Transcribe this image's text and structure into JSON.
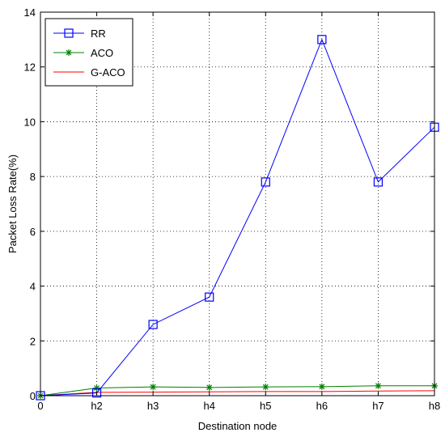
{
  "chart_data": {
    "type": "line",
    "categories": [
      "0",
      "h2",
      "h3",
      "h4",
      "h5",
      "h6",
      "h7",
      "h8"
    ],
    "xlabel": "Destination node",
    "ylabel": "Packet Loss Rate(%)",
    "ylim": [
      0,
      14
    ],
    "yticks": [
      "0",
      "2",
      "4",
      "6",
      "8",
      "10",
      "12",
      "14"
    ],
    "grid": true,
    "legend_position": "top-left",
    "series": [
      {
        "name": "RR",
        "color": "#0000ff",
        "marker": "square",
        "values": [
          0,
          0.1,
          2.6,
          3.6,
          7.8,
          13.0,
          7.8,
          9.8
        ]
      },
      {
        "name": "ACO",
        "color": "#008000",
        "marker": "star",
        "values": [
          0,
          0.28,
          0.32,
          0.3,
          0.32,
          0.33,
          0.36,
          0.36
        ]
      },
      {
        "name": "G-ACO",
        "color": "#ff0000",
        "marker": "none",
        "values": [
          0,
          0.12,
          0.13,
          0.14,
          0.15,
          0.15,
          0.17,
          0.18
        ]
      }
    ]
  }
}
